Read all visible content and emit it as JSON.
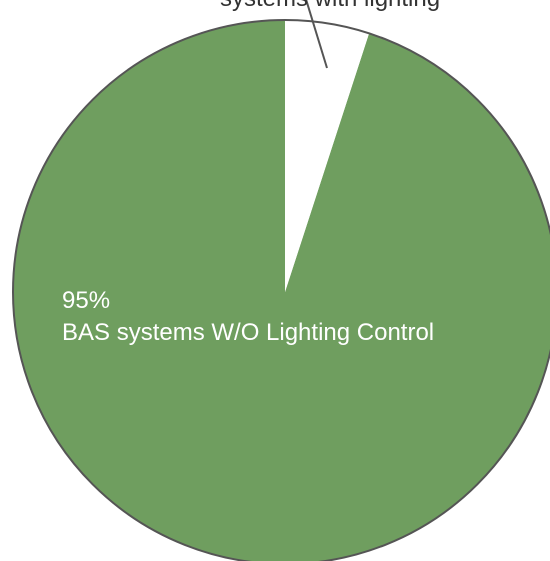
{
  "chart_data": {
    "type": "pie",
    "slices": [
      {
        "value": 95,
        "percent_label": "95%",
        "category_label": "BAS systems W/O Lighting Control",
        "color": "#6f9e5f"
      },
      {
        "value": 5,
        "percent_label": "",
        "category_label": "",
        "color": "#ffffff"
      }
    ],
    "partial_label": "systems with lighting",
    "outline_color": "#555555",
    "leader_color": "#555555"
  }
}
